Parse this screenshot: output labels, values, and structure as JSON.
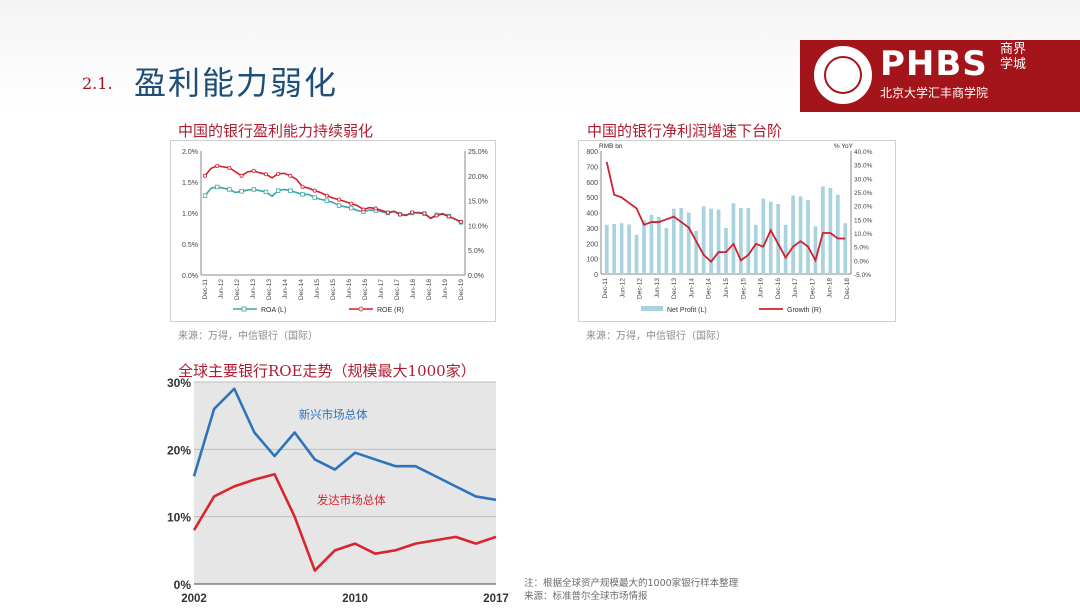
{
  "header": {
    "section_number": "2.1.",
    "section_title": "盈利能力弱化",
    "logo_text": "PHBS",
    "logo_subtitle": "北京大学汇丰商学院",
    "logo_script": "商界学城",
    "seal_text": "PEKING UNIVERSITY 1898"
  },
  "colors": {
    "brand_red": "#a4141b",
    "title_blue": "#1f4e79",
    "chart_title_red": "#b01c2e"
  },
  "chart1_title": "中国的银行盈利能力持续弱化",
  "chart1_source": "来源：万得，中信银行（国际）",
  "chart2_title": "中国的银行净利润增速下台阶",
  "chart2_source": "来源：万得，中信银行（国际）",
  "chart3_title": "全球主要银行ROE走势（规模最大1000家）",
  "chart3_note1": "注：根据全球资产规模最大的1000家银行样本整理",
  "chart3_note2": "来源：标准普尔全球市场情报",
  "chart_data": [
    {
      "type": "line",
      "x_ticks": [
        "Dec-11",
        "Jun-12",
        "Dec-12",
        "Jun-13",
        "Dec-13",
        "Jun-14",
        "Dec-14",
        "Jun-15",
        "Dec-15",
        "Jun-16",
        "Dec-16",
        "Jun-17",
        "Dec-17",
        "Jun-18",
        "Dec-18",
        "Jun-19",
        "Dec-19"
      ],
      "y_left_ticks": [
        "0.0%",
        "0.5%",
        "1.0%",
        "1.5%",
        "2.0%"
      ],
      "y_right_ticks": [
        "0.0%",
        "5.0%",
        "10.0%",
        "15.0%",
        "20.0%",
        "25.0%"
      ],
      "ylim_left": [
        0,
        2.0
      ],
      "ylim_right": [
        0,
        25
      ],
      "series": [
        {
          "name": "ROA (L)",
          "axis": "left",
          "color": "#3aa6a6",
          "values": [
            1.28,
            1.4,
            1.42,
            1.4,
            1.38,
            1.33,
            1.35,
            1.37,
            1.38,
            1.36,
            1.34,
            1.27,
            1.36,
            1.38,
            1.36,
            1.33,
            1.3,
            1.3,
            1.25,
            1.22,
            1.2,
            1.17,
            1.12,
            1.1,
            1.08,
            1.04,
            1.02,
            1.05,
            1.04,
            1.02,
            1.0,
            1.03,
            0.98,
            0.97,
            1.0,
            1.01,
            0.99,
            0.92,
            0.97,
            0.99,
            0.95,
            0.9,
            0.85
          ]
        },
        {
          "name": "ROE (R)",
          "axis": "right",
          "color": "#d0202e",
          "values": [
            20.0,
            21.5,
            22.0,
            21.8,
            21.6,
            20.8,
            20.0,
            20.8,
            21.0,
            20.6,
            20.3,
            19.6,
            20.4,
            20.5,
            20.0,
            19.3,
            17.8,
            17.5,
            17.0,
            16.6,
            16.0,
            15.5,
            15.2,
            14.8,
            14.4,
            14.0,
            13.2,
            13.6,
            13.4,
            13.0,
            12.6,
            12.8,
            12.2,
            12.0,
            12.6,
            12.5,
            12.4,
            11.4,
            12.0,
            12.3,
            11.8,
            11.3,
            10.7
          ]
        }
      ]
    },
    {
      "type": "bar",
      "y_left_unit": "RMB bn",
      "y_right_unit": "% YoY",
      "x_ticks": [
        "Dec-11",
        "Jun-12",
        "Dec-12",
        "Jun-13",
        "Dec-13",
        "Jun-14",
        "Dec-14",
        "Jun-15",
        "Dec-15",
        "Jun-16",
        "Dec-16",
        "Jun-17",
        "Dec-17",
        "Jun-18",
        "Dec-18"
      ],
      "y_left_ticks": [
        "0",
        "100",
        "200",
        "300",
        "400",
        "500",
        "600",
        "700",
        "800"
      ],
      "y_right_ticks": [
        "-5.0%",
        "0.0%",
        "5.0%",
        "10.0%",
        "15.0%",
        "20.0%",
        "25.0%",
        "30.0%",
        "35.0%",
        "40.0%"
      ],
      "ylim_left": [
        0,
        800
      ],
      "ylim_right": [
        -5,
        40
      ],
      "series": [
        {
          "name": "Net Profit (L)",
          "axis": "left",
          "color": "#a8d3df",
          "values": [
            320,
            325,
            330,
            322,
            255,
            350,
            385,
            370,
            300,
            425,
            430,
            400,
            280,
            440,
            425,
            420,
            300,
            460,
            430,
            430,
            320,
            490,
            470,
            455,
            320,
            510,
            505,
            480,
            310,
            570,
            560,
            515,
            330
          ]
        },
        {
          "name": "Growth (R)",
          "axis": "right",
          "color": "#d0202e",
          "values": [
            36,
            24,
            23,
            21,
            19,
            13,
            14,
            14,
            15,
            16,
            14,
            12,
            7,
            2,
            -0.5,
            3,
            3,
            6,
            0,
            2,
            6,
            5,
            11,
            6,
            1,
            5,
            7,
            5,
            0,
            10,
            10,
            8,
            8
          ]
        }
      ]
    },
    {
      "type": "line",
      "x_ticks": [
        "2002",
        "2010",
        "2017"
      ],
      "y_ticks": [
        "0%",
        "10%",
        "20%",
        "30%"
      ],
      "ylim": [
        0,
        30
      ],
      "xlim": [
        2002,
        2017
      ],
      "series": [
        {
          "name": "新兴市场总体",
          "color": "#2e73bd",
          "x": [
            2002,
            2003,
            2004,
            2005,
            2006,
            2007,
            2008,
            2009,
            2010,
            2011,
            2012,
            2013,
            2014,
            2015,
            2016,
            2017
          ],
          "values": [
            16,
            26,
            29,
            22.5,
            19,
            22.5,
            18.5,
            17,
            19.5,
            18.5,
            17.5,
            17.5,
            16,
            14.5,
            13,
            12.5
          ]
        },
        {
          "name": "发达市场总体",
          "color": "#d8262e",
          "x": [
            2002,
            2003,
            2004,
            2005,
            2006,
            2007,
            2008,
            2009,
            2010,
            2011,
            2012,
            2013,
            2014,
            2015,
            2016,
            2017
          ],
          "values": [
            8,
            13,
            14.5,
            15.5,
            16.3,
            10,
            2,
            5,
            6,
            4.5,
            5,
            6,
            6.5,
            7,
            6,
            7
          ]
        }
      ]
    }
  ]
}
